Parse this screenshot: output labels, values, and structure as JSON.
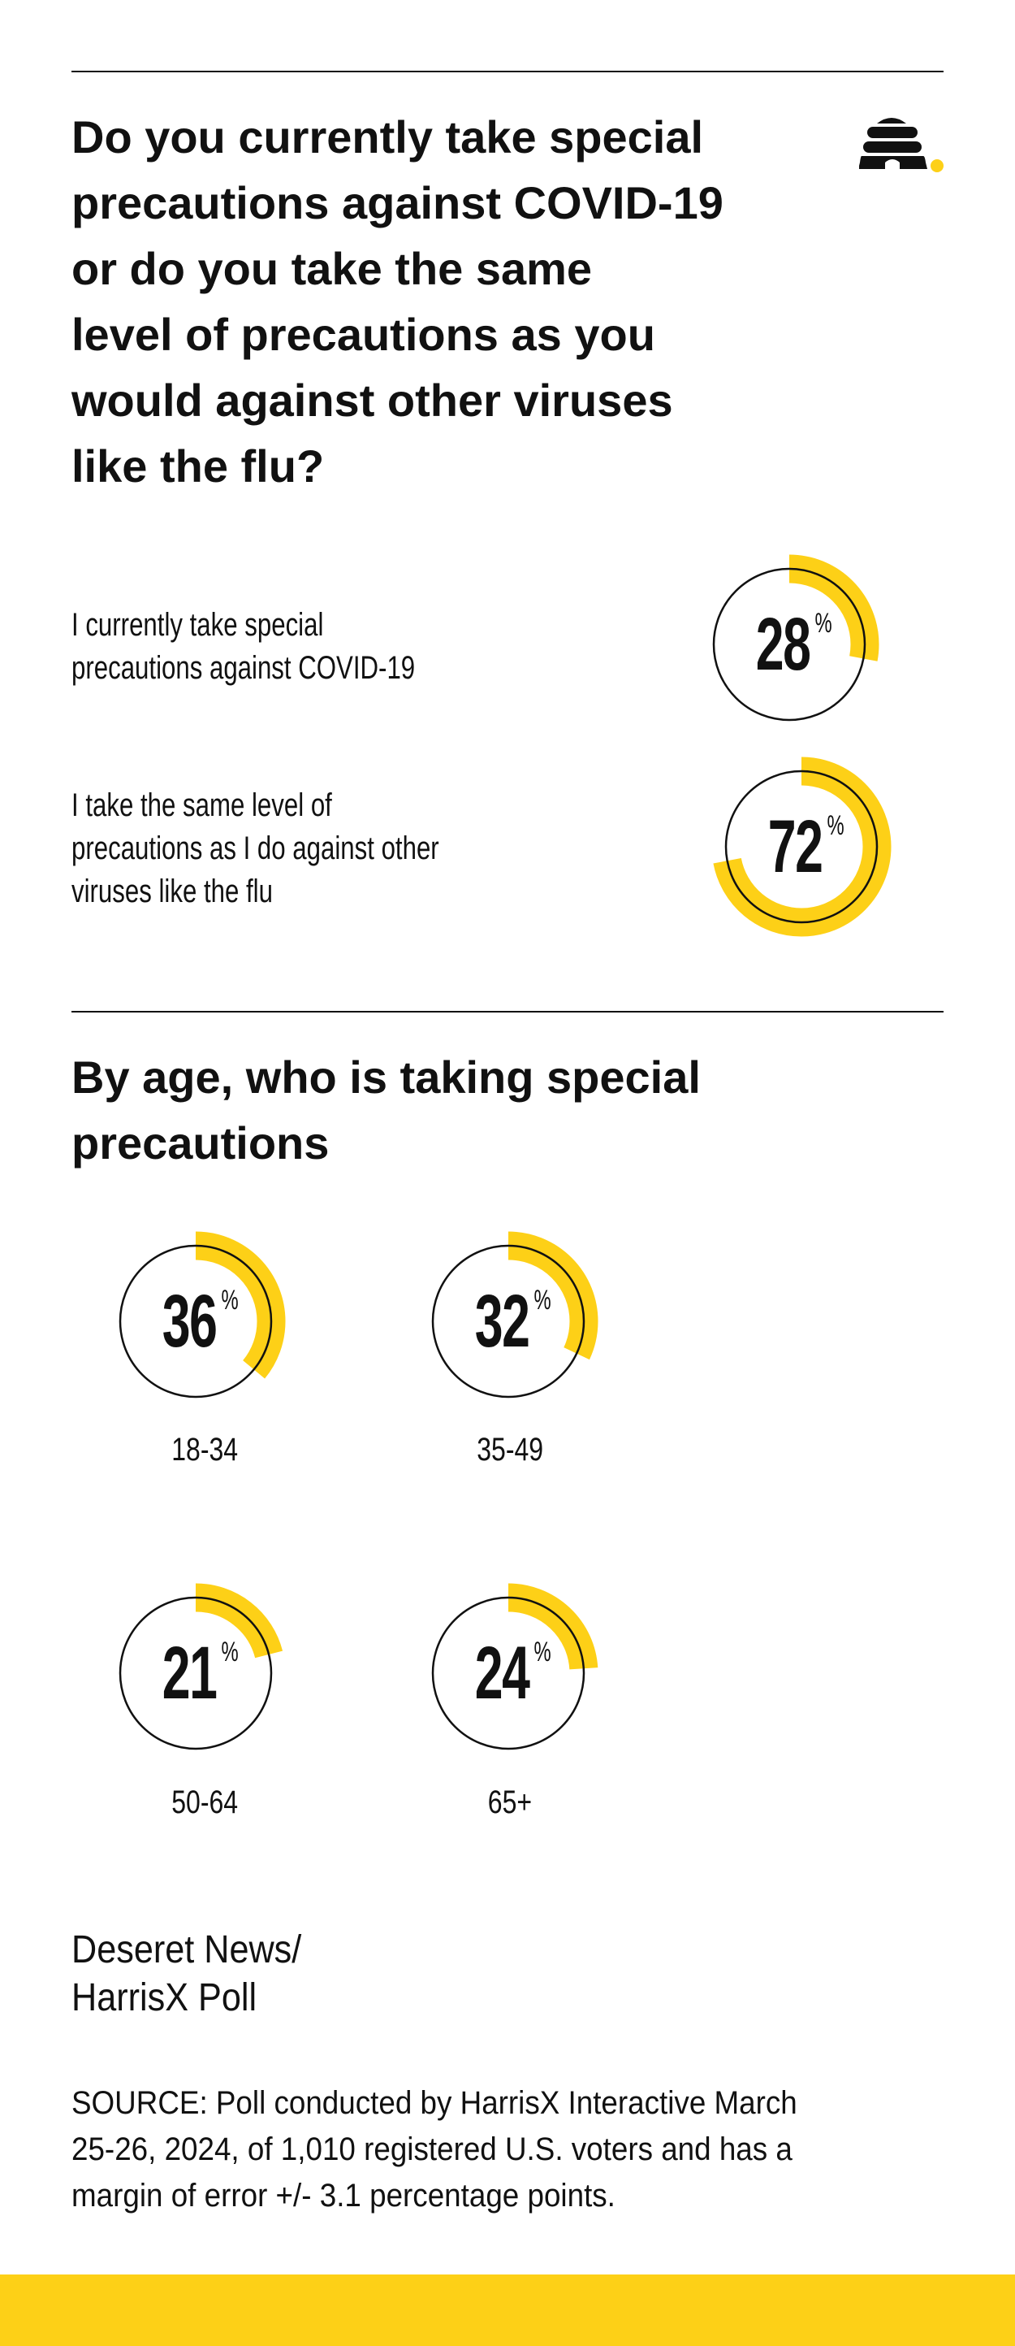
{
  "title_lines": [
    "Do you currently take special",
    "precautions against COVID-19",
    "or do you take the same",
    "level of precautions as you",
    "would against other viruses",
    "like the flu?"
  ],
  "colors": {
    "accent": "#FDD017",
    "text": "#111111",
    "ring": "#111111"
  },
  "logo": {
    "icon": "beehive-icon"
  },
  "chart_data": [
    {
      "type": "pie",
      "style": "donut-progress",
      "categories": [
        "I currently take special precautions against COVID-19",
        "I take the same level of precautions as I do against other viruses like the flu"
      ],
      "values": [
        28,
        72
      ],
      "unit": "%",
      "label_lines": [
        [
          "I currently take special",
          "precautions against COVID-19"
        ],
        [
          "I take the same level of",
          "precautions as I do against other",
          "viruses like the flu"
        ]
      ]
    },
    {
      "type": "pie",
      "style": "donut-progress",
      "title_lines": [
        "By age, who is taking special",
        "precautions"
      ],
      "categories": [
        "18-34",
        "35-49",
        "50-64",
        "65+"
      ],
      "values": [
        36,
        32,
        21,
        24
      ],
      "unit": "%"
    }
  ],
  "credit_lines": [
    "Deseret News/",
    "HarrisX Poll"
  ],
  "source_lines": [
    "SOURCE: Poll conducted by HarrisX Interactive March",
    "25-26, 2024, of 1,010 registered U.S. voters and has a",
    "margin of error +/- 3.1 percentage points."
  ]
}
